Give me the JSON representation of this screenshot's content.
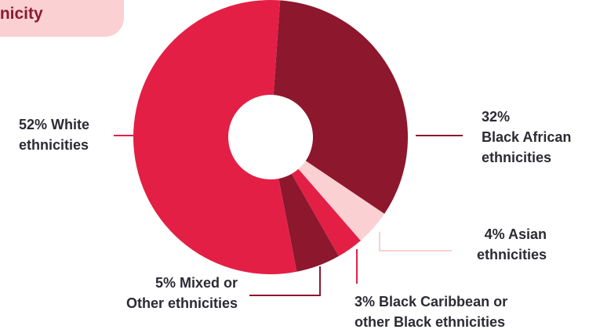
{
  "header": {
    "tab_title": "thnicity"
  },
  "chart_data": {
    "type": "pie",
    "variant": "donut",
    "slices": [
      {
        "value": 52,
        "label_lines": [
          "52% White",
          "ethnicities"
        ],
        "color": "#e31f45"
      },
      {
        "value": 32,
        "label_lines": [
          "32%",
          "Black African",
          "ethnicities"
        ],
        "color": "#8d172c"
      },
      {
        "value": 4,
        "label_lines": [
          "4% Asian",
          "ethnicities"
        ],
        "color": "#fbd0d3"
      },
      {
        "value": 3,
        "label_lines": [
          "3% Black Caribbean or",
          "other Black ethnicities"
        ],
        "color": "#e31f45"
      },
      {
        "value": 5,
        "label_lines": [
          "5% Mixed or",
          "Other ethnicities"
        ],
        "color": "#8d172c"
      }
    ],
    "legend": "none"
  }
}
